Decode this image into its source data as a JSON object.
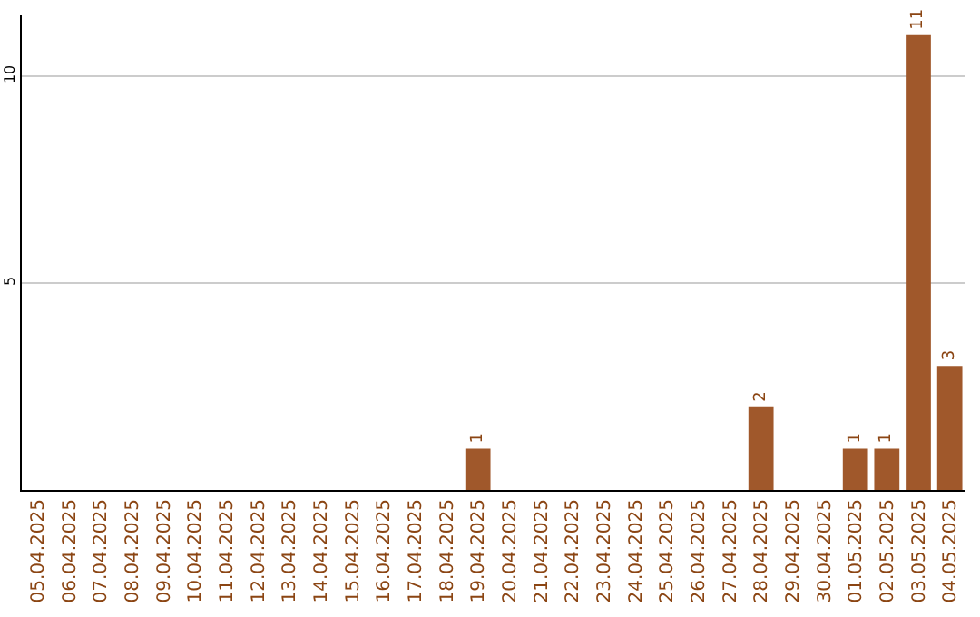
{
  "chart_data": {
    "type": "bar",
    "categories": [
      "05.04.2025",
      "06.04.2025",
      "07.04.2025",
      "08.04.2025",
      "09.04.2025",
      "10.04.2025",
      "11.04.2025",
      "12.04.2025",
      "13.04.2025",
      "14.04.2025",
      "15.04.2025",
      "16.04.2025",
      "17.04.2025",
      "18.04.2025",
      "19.04.2025",
      "20.04.2025",
      "21.04.2025",
      "22.04.2025",
      "23.04.2025",
      "24.04.2025",
      "25.04.2025",
      "26.04.2025",
      "27.04.2025",
      "28.04.2025",
      "29.04.2025",
      "30.04.2025",
      "01.05.2025",
      "02.05.2025",
      "03.05.2025",
      "04.05.2025"
    ],
    "values": [
      0,
      0,
      0,
      0,
      0,
      0,
      0,
      0,
      0,
      0,
      0,
      0,
      0,
      0,
      1,
      0,
      0,
      0,
      0,
      0,
      0,
      0,
      0,
      2,
      0,
      0,
      1,
      1,
      11,
      3
    ],
    "value_labels": [
      null,
      null,
      null,
      null,
      null,
      null,
      null,
      null,
      null,
      null,
      null,
      null,
      null,
      null,
      "1",
      null,
      null,
      null,
      null,
      null,
      null,
      null,
      null,
      "2",
      null,
      null,
      "1",
      "1",
      "11",
      "3"
    ],
    "color": "#a0582b",
    "ylim": [
      0,
      11.5
    ],
    "yticks": [
      5,
      10
    ],
    "grid": "y"
  }
}
